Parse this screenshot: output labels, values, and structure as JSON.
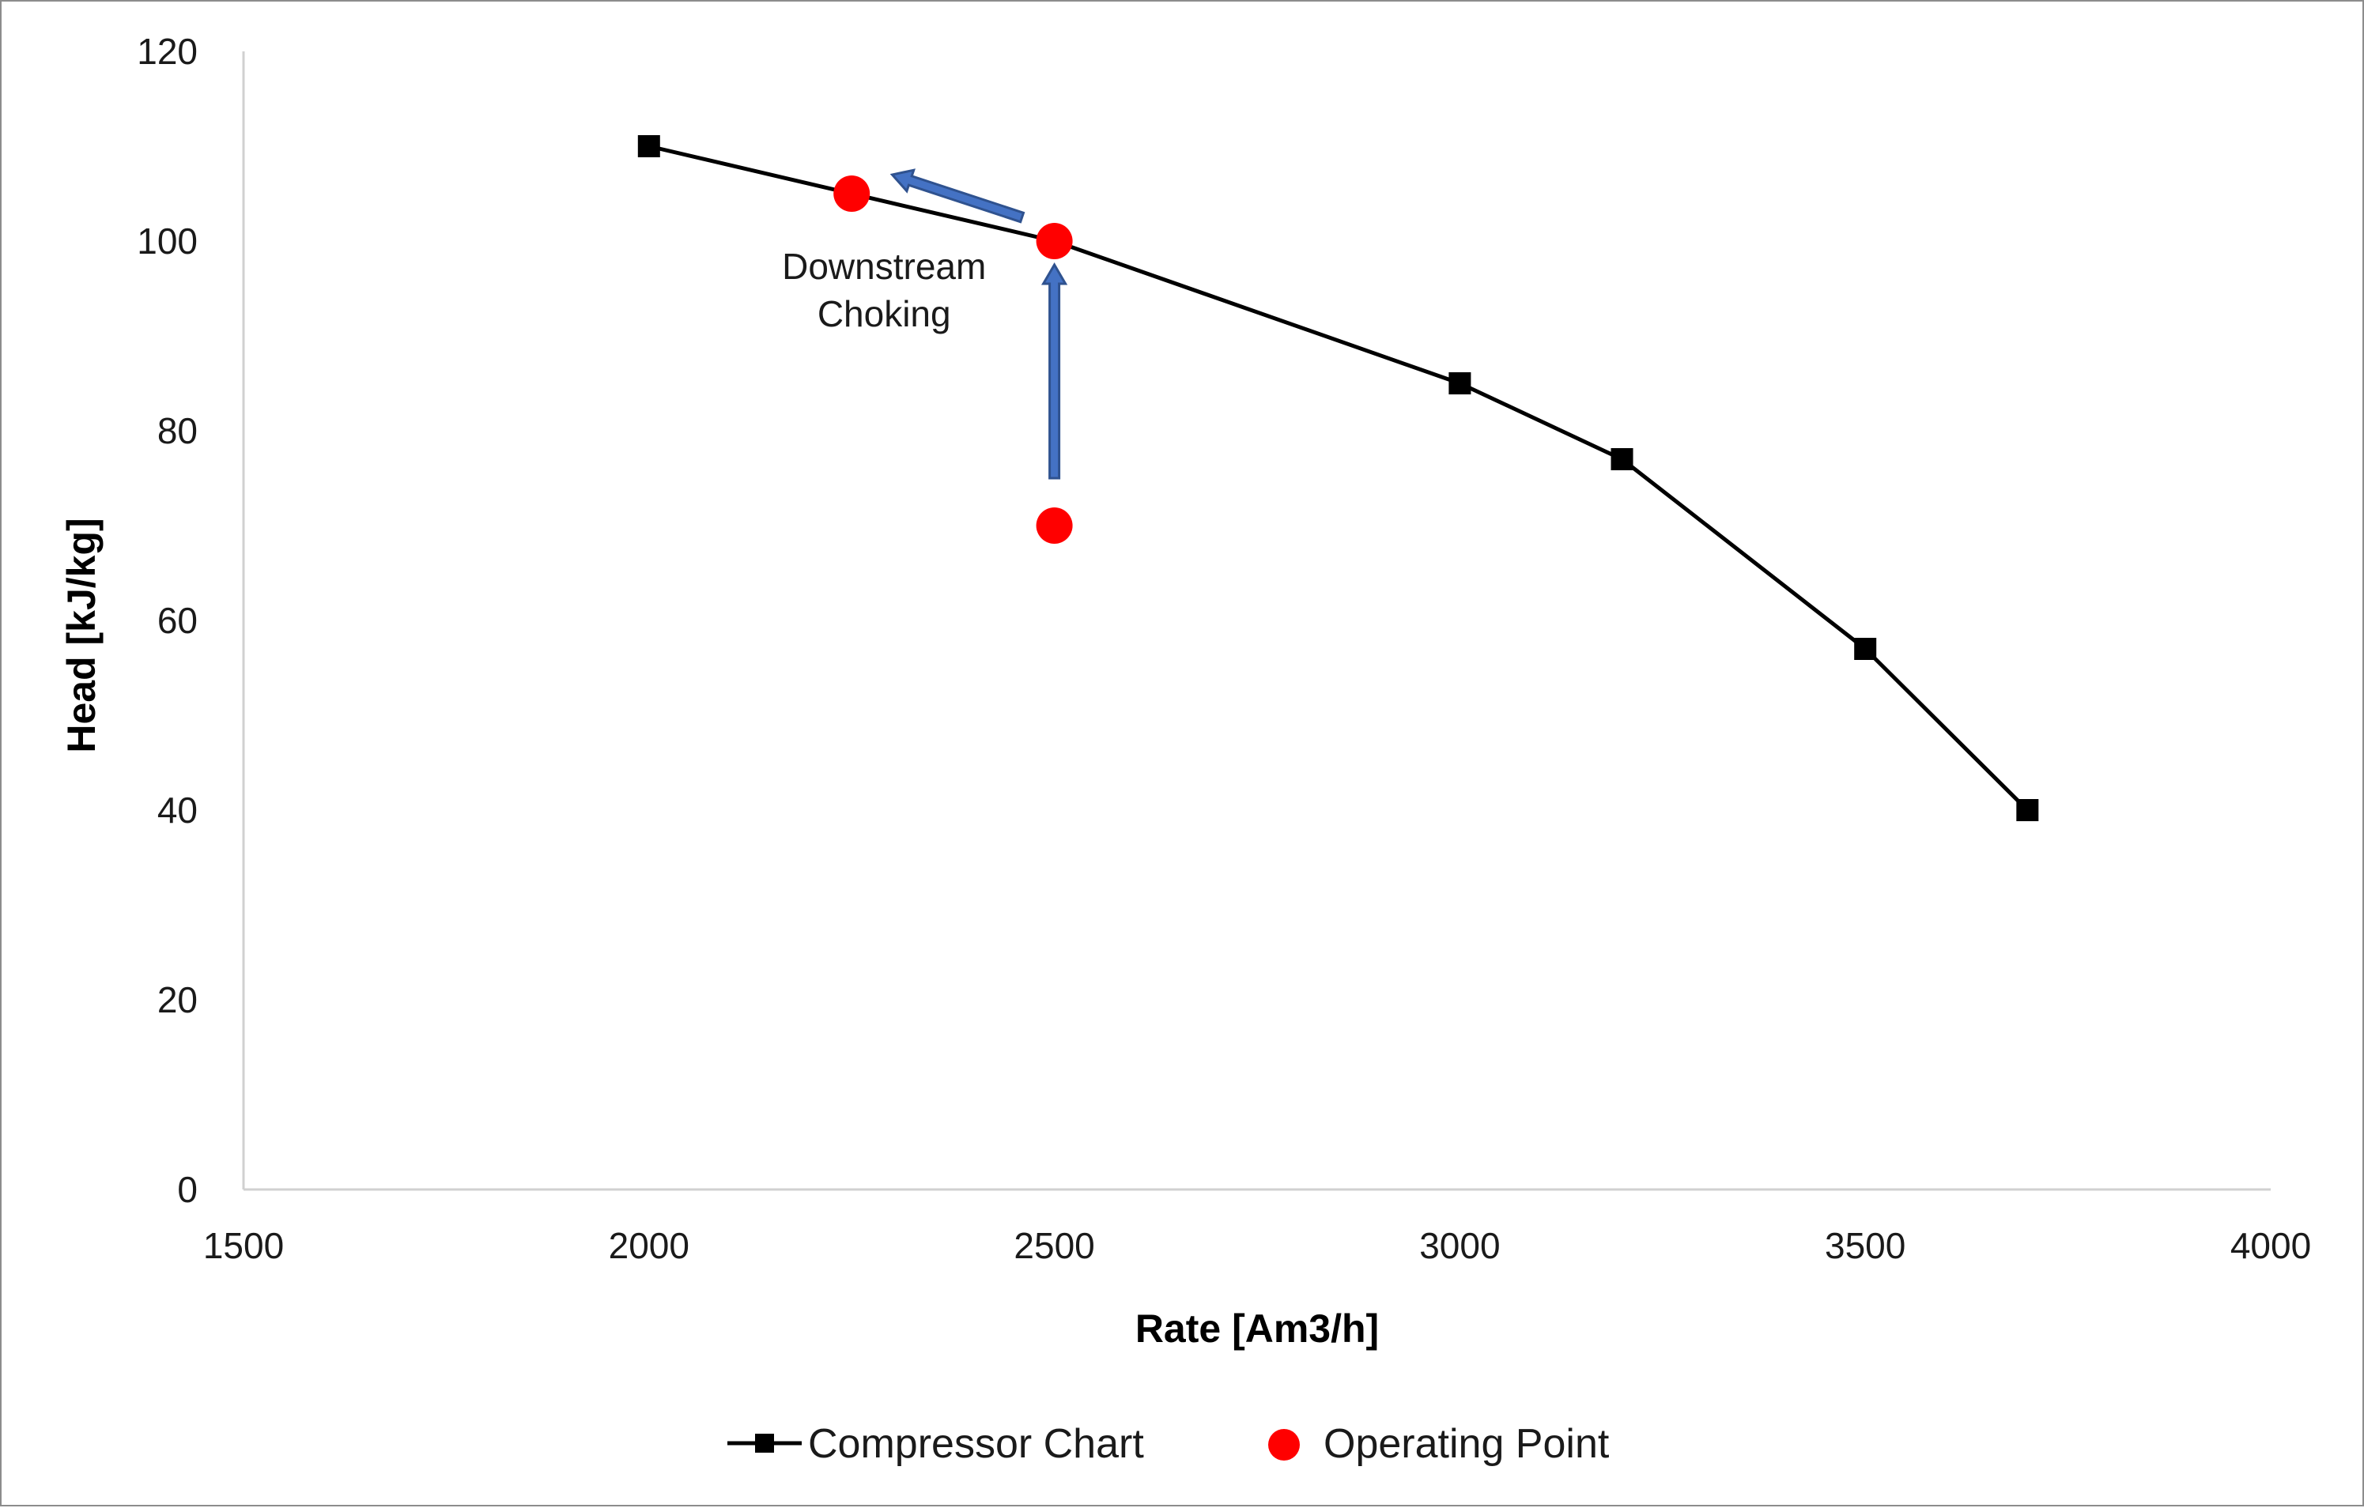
{
  "chart_data": {
    "type": "scatter",
    "xlabel": "Rate [Am3/h]",
    "ylabel": "Head [kJ/kg]",
    "xlim": [
      1500,
      4000
    ],
    "ylim": [
      0,
      120
    ],
    "xticks": [
      1500,
      2000,
      2500,
      3000,
      3500,
      4000
    ],
    "yticks": [
      0,
      20,
      40,
      60,
      80,
      100,
      120
    ],
    "grid": false,
    "legend_position": "bottom",
    "series": [
      {
        "name": "Compressor Chart",
        "kind": "line-with-square-markers",
        "color": "#000000",
        "points": [
          {
            "x": 2000,
            "y": 110
          },
          {
            "x": 2500,
            "y": 100
          },
          {
            "x": 3000,
            "y": 85
          },
          {
            "x": 3200,
            "y": 77
          },
          {
            "x": 3500,
            "y": 57
          },
          {
            "x": 3700,
            "y": 40
          }
        ]
      },
      {
        "name": "Operating Point",
        "kind": "scatter-circle",
        "color": "#ff0000",
        "points": [
          {
            "x": 2250,
            "y": 105
          },
          {
            "x": 2500,
            "y": 100
          },
          {
            "x": 2500,
            "y": 70
          }
        ]
      }
    ],
    "arrows": [
      {
        "from": {
          "x": 2500,
          "y": 75
        },
        "to": {
          "x": 2500,
          "y": 97.5
        },
        "color": "#4472c4"
      },
      {
        "from": {
          "x": 2460,
          "y": 102.5
        },
        "to": {
          "x": 2300,
          "y": 107
        },
        "color": "#4472c4"
      }
    ],
    "annotations": [
      {
        "lines": [
          "Downstream",
          "Choking"
        ],
        "x": 2290,
        "y": 96
      }
    ]
  }
}
